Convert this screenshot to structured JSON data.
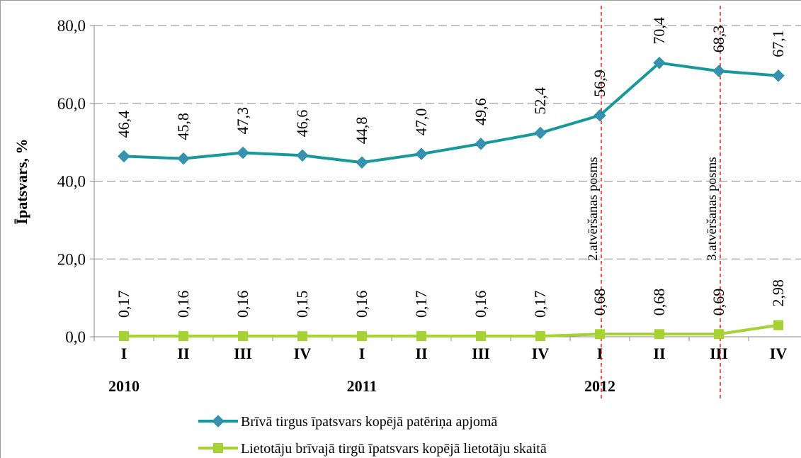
{
  "chart_data": {
    "type": "line",
    "y_label": "Īpatsvars, %",
    "categories": [
      "I",
      "II",
      "III",
      "IV",
      "I",
      "II",
      "III",
      "IV",
      "I",
      "II",
      "III",
      "IV"
    ],
    "year_labels": [
      "2010",
      null,
      null,
      null,
      "2011",
      null,
      null,
      null,
      "2012",
      null,
      null,
      null
    ],
    "series": [
      {
        "name": "Brīvā tirgus īpatsvars kopējā patēriņa apjomā",
        "color": "#17989a",
        "marker": "diamond",
        "marker_color": "#3b8fb3",
        "values": [
          46.4,
          45.8,
          47.3,
          46.6,
          44.8,
          47.0,
          49.6,
          52.4,
          56.9,
          70.4,
          68.3,
          67.1
        ],
        "value_labels": [
          "46,4",
          "45,8",
          "47,3",
          "46,6",
          "44,8",
          "47,0",
          "49,6",
          "52,4",
          "56,9",
          "70,4",
          "68,3",
          "67,1"
        ]
      },
      {
        "name": "Lietotāju brīvajā tirgū īpatsvars kopējā lietotāju skaitā",
        "color": "#a6d234",
        "marker": "square",
        "marker_color": "#a6d234",
        "values": [
          0.17,
          0.16,
          0.16,
          0.15,
          0.16,
          0.17,
          0.16,
          0.17,
          0.68,
          0.68,
          0.69,
          2.98
        ],
        "value_labels": [
          "0,17",
          "0,16",
          "0,16",
          "0,15",
          "0,16",
          "0,17",
          "0,16",
          "0,17",
          "0,68",
          "0,68",
          "0,69",
          "2,98"
        ]
      }
    ],
    "ylim": [
      0,
      80
    ],
    "yticks": [
      {
        "value": 0,
        "label": "0,0"
      },
      {
        "value": 20,
        "label": "20,0"
      },
      {
        "value": 40,
        "label": "40,0"
      },
      {
        "value": 60,
        "label": "60,0"
      },
      {
        "value": 80,
        "label": "80,0"
      }
    ],
    "grid": true,
    "legend": "bottom",
    "annotations": [
      {
        "text": "2.atvēršanas posms",
        "after_category": 8,
        "color": "#e02020"
      },
      {
        "text": "3.atvēršanas posms",
        "after_category": 10,
        "color": "#e02020"
      }
    ]
  }
}
